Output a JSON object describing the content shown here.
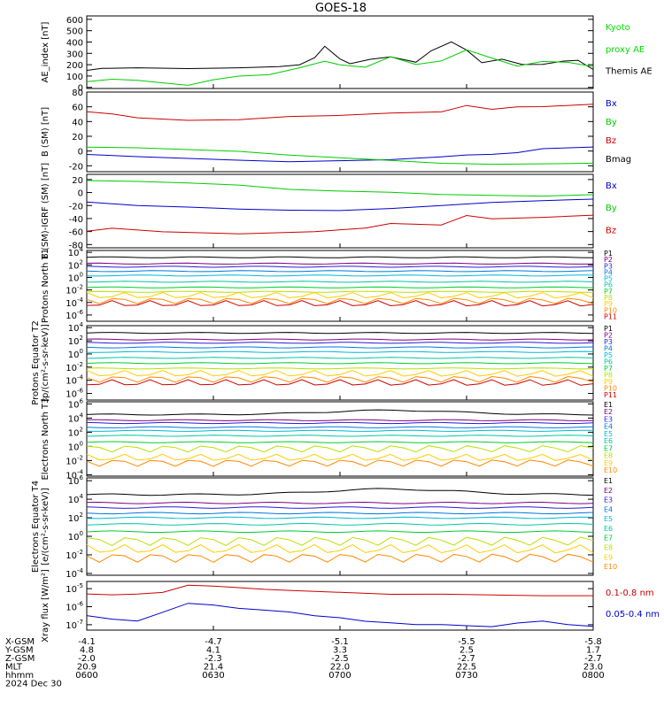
{
  "title": "GOES-18",
  "colors": {
    "axis": "#000000",
    "P": [
      "#000000",
      "#7b0082",
      "#2a1bd6",
      "#0077dd",
      "#00b8d4",
      "#00c8a0",
      "#00cc33",
      "#b8e000",
      "#ffcc00",
      "#ff8800",
      "#cc0000",
      "#a00000"
    ]
  },
  "chart_data": [
    {
      "type": "line",
      "ylabel": "AE_index [nT]",
      "ylim": [
        -10,
        630
      ],
      "yticks": [
        0,
        100,
        200,
        300,
        400,
        500,
        600
      ],
      "legend": [
        {
          "text": "Kyoto",
          "color": "#00dd00"
        },
        {
          "text": "proxy AE",
          "color": "#00dd00"
        },
        {
          "text": "Themis AE",
          "color": "#000000"
        }
      ],
      "series": [
        {
          "color": "#000000",
          "x": [
            0.0,
            0.03,
            0.1,
            0.2,
            0.3,
            0.38,
            0.42,
            0.45,
            0.47,
            0.5,
            0.52,
            0.56,
            0.6,
            0.65,
            0.68,
            0.72,
            0.75,
            0.78,
            0.82,
            0.86,
            0.9,
            0.94,
            0.97,
            1.0
          ],
          "y": [
            150,
            165,
            170,
            165,
            175,
            185,
            200,
            260,
            360,
            250,
            210,
            250,
            270,
            220,
            320,
            400,
            330,
            220,
            250,
            200,
            200,
            230,
            240,
            160
          ]
        },
        {
          "color": "#00cc00",
          "x": [
            0.0,
            0.05,
            0.1,
            0.15,
            0.2,
            0.25,
            0.3,
            0.36,
            0.42,
            0.47,
            0.5,
            0.55,
            0.6,
            0.65,
            0.7,
            0.75,
            0.8,
            0.85,
            0.9,
            0.95,
            1.0
          ],
          "y": [
            50,
            70,
            60,
            40,
            20,
            70,
            100,
            110,
            170,
            230,
            200,
            180,
            270,
            200,
            230,
            330,
            260,
            190,
            230,
            220,
            180
          ]
        }
      ]
    },
    {
      "type": "line",
      "ylabel": "B (SM) [nT]",
      "ylim": [
        -28,
        80
      ],
      "yticks": [
        -20,
        0,
        20,
        40,
        60,
        80
      ],
      "legend": [
        {
          "text": "Bx",
          "color": "#0000cc"
        },
        {
          "text": "By",
          "color": "#00cc00"
        },
        {
          "text": "Bz",
          "color": "#cc0000"
        },
        {
          "text": "Bmag",
          "color": "#000000"
        }
      ],
      "series": [
        {
          "color": "#cc0000",
          "x": [
            0.0,
            0.05,
            0.1,
            0.2,
            0.3,
            0.4,
            0.5,
            0.6,
            0.7,
            0.75,
            0.8,
            0.85,
            0.9,
            1.0
          ],
          "y": [
            53,
            50,
            45,
            42,
            43,
            47,
            48,
            51,
            53,
            62,
            57,
            60,
            60,
            63
          ]
        },
        {
          "color": "#0000cc",
          "x": [
            0.0,
            0.1,
            0.2,
            0.3,
            0.4,
            0.5,
            0.6,
            0.65,
            0.7,
            0.75,
            0.8,
            0.85,
            0.9,
            1.0
          ],
          "y": [
            -5,
            -8,
            -10,
            -12,
            -14,
            -13,
            -12,
            -10,
            -8,
            -5,
            -4,
            -2,
            3,
            5
          ]
        },
        {
          "color": "#00cc00",
          "x": [
            0.0,
            0.1,
            0.2,
            0.3,
            0.4,
            0.5,
            0.6,
            0.7,
            0.8,
            0.9,
            1.0
          ],
          "y": [
            5,
            4,
            2,
            0,
            -5,
            -9,
            -13,
            -17,
            -18,
            -17,
            -16
          ]
        }
      ]
    },
    {
      "type": "line",
      "ylabel": "B (SM)-IGRF (SM) [nT]",
      "ylim": [
        -85,
        28
      ],
      "yticks": [
        -80,
        -60,
        -40,
        -20,
        0,
        20
      ],
      "legend": [
        {
          "text": "Bx",
          "color": "#0000cc"
        },
        {
          "text": "By",
          "color": "#00cc00"
        },
        {
          "text": "Bz",
          "color": "#cc0000"
        }
      ],
      "series": [
        {
          "color": "#00cc00",
          "x": [
            0.0,
            0.1,
            0.2,
            0.3,
            0.4,
            0.5,
            0.6,
            0.7,
            0.8,
            0.9,
            1.0
          ],
          "y": [
            18,
            17,
            15,
            12,
            5,
            2,
            0,
            -3,
            -4,
            -5,
            -3
          ]
        },
        {
          "color": "#0000cc",
          "x": [
            0.0,
            0.1,
            0.2,
            0.3,
            0.4,
            0.5,
            0.6,
            0.7,
            0.8,
            0.9,
            1.0
          ],
          "y": [
            -15,
            -20,
            -22,
            -25,
            -27,
            -28,
            -25,
            -20,
            -15,
            -12,
            -10
          ]
        },
        {
          "color": "#cc0000",
          "x": [
            0.0,
            0.05,
            0.15,
            0.3,
            0.45,
            0.55,
            0.6,
            0.7,
            0.75,
            0.8,
            0.9,
            1.0
          ],
          "y": [
            -60,
            -55,
            -60,
            -63,
            -60,
            -55,
            -48,
            -50,
            -35,
            -40,
            -38,
            -35
          ]
        }
      ]
    },
    {
      "type": "line",
      "log": true,
      "ylabel": "Protons North T1",
      "ylim": [
        -7,
        4.3
      ],
      "yticks": [
        4,
        2,
        0,
        -2,
        -4,
        -6
      ],
      "legend_labels": [
        "P1",
        "P2",
        "P3",
        "P4",
        "P5",
        "P6",
        "P7",
        "P8",
        "P9",
        "P10",
        "P11"
      ],
      "levels": [
        3.2,
        2.2,
        1.7,
        1.0,
        0.3,
        -0.7,
        -1.6,
        -2.3,
        -2.9,
        -3.7,
        -4.2
      ]
    },
    {
      "type": "line",
      "log": true,
      "ylabel": "Protons Equator T2",
      "unit": "[p/(cm²-s-sr-keV)]",
      "ylim": [
        -7,
        4.3
      ],
      "yticks": [
        4,
        2,
        0,
        -2,
        -4,
        -6
      ],
      "legend_labels": [
        "P1",
        "P2",
        "P3",
        "P4",
        "P5",
        "P6",
        "P7",
        "P8",
        "P9",
        "P10",
        "P11"
      ],
      "levels": [
        3.2,
        2.2,
        1.7,
        1.0,
        0.3,
        -0.6,
        -1.4,
        -2.2,
        -3.0,
        -3.8,
        -4.4
      ]
    },
    {
      "type": "line",
      "log": true,
      "ylabel": "Electrons North T3",
      "ylim": [
        -4.2,
        6.3
      ],
      "yticks": [
        6,
        4,
        2,
        0,
        -2,
        -4
      ],
      "legend_labels": [
        "E1",
        "E2",
        "E3",
        "E4",
        "E5",
        "E6",
        "E7",
        "E8",
        "E9",
        "E10"
      ],
      "levels": [
        4.5,
        3.7,
        3.3,
        2.7,
        2.2,
        1.5,
        0.6,
        -0.3,
        -1.6,
        -2.3
      ]
    },
    {
      "type": "line",
      "log": true,
      "ylabel": "Electrons Equator T4",
      "unit": "[e/(cm²-s-sr-keV)]",
      "ylim": [
        -4.2,
        6.3
      ],
      "yticks": [
        6,
        4,
        2,
        0,
        -2,
        -4
      ],
      "legend_labels": [
        "E1",
        "E2",
        "E3",
        "E4",
        "E5",
        "E6",
        "E7",
        "E8",
        "E9",
        "E10"
      ],
      "levels": [
        4.5,
        3.6,
        3.1,
        2.5,
        2.0,
        1.3,
        0.5,
        -0.5,
        -1.4,
        -2.3
      ]
    },
    {
      "type": "line",
      "log": true,
      "ylabel": "Xray flux [W/m²]",
      "ylim": [
        -7.3,
        -4.6
      ],
      "yticks": [
        -5,
        -6,
        -7
      ],
      "legend": [
        {
          "text": "0.1-0.8 nm",
          "color": "#cc0000"
        },
        {
          "text": "0.05-0.4 nm",
          "color": "#0000cc"
        }
      ],
      "series": [
        {
          "color": "#cc0000",
          "x": [
            0.0,
            0.05,
            0.1,
            0.15,
            0.2,
            0.25,
            0.3,
            0.35,
            0.4,
            0.5,
            0.6,
            0.7,
            0.8,
            0.9,
            1.0
          ],
          "y": [
            -5.3,
            -5.35,
            -5.3,
            -5.2,
            -4.8,
            -4.85,
            -4.95,
            -5.05,
            -5.1,
            -5.2,
            -5.3,
            -5.3,
            -5.35,
            -5.4,
            -5.4
          ]
        },
        {
          "color": "#0000cc",
          "x": [
            0.0,
            0.05,
            0.1,
            0.15,
            0.2,
            0.25,
            0.3,
            0.35,
            0.4,
            0.45,
            0.5,
            0.55,
            0.6,
            0.65,
            0.7,
            0.75,
            0.8,
            0.85,
            0.9,
            0.95,
            1.0
          ],
          "y": [
            -6.5,
            -6.7,
            -6.8,
            -6.3,
            -5.8,
            -5.9,
            -6.1,
            -6.2,
            -6.3,
            -6.5,
            -6.6,
            -6.8,
            -6.9,
            -7.0,
            -7.0,
            -7.05,
            -7.1,
            -6.9,
            -6.8,
            -7.0,
            -7.1
          ]
        }
      ]
    }
  ],
  "xaxis": {
    "row_labels": [
      "X-GSM",
      "Y-GSM",
      "Z-GSM",
      "MLT",
      "hhmm",
      "2024 Dec 30"
    ],
    "columns": [
      [
        "-4.1",
        "4.8",
        "-2.0",
        "20.9",
        "0600"
      ],
      [
        "-4.7",
        "4.1",
        "-2.3",
        "21.4",
        "0630"
      ],
      [
        "-5.1",
        "3.3",
        "-2.5",
        "22.0",
        "0700"
      ],
      [
        "-5.5",
        "2.5",
        "-2.7",
        "22.5",
        "0730"
      ],
      [
        "-5.8",
        "1.7",
        "-2.7",
        "23.0",
        "0800"
      ]
    ]
  }
}
